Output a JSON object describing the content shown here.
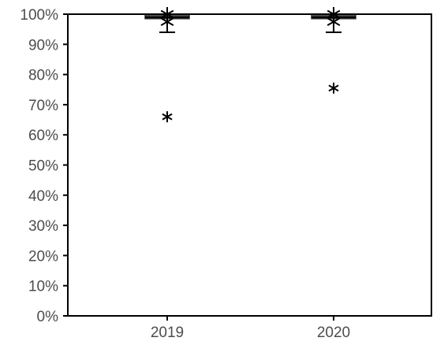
{
  "chart_data": {
    "type": "box",
    "title": "",
    "xlabel": "",
    "ylabel": "",
    "ylim": [
      0,
      1
    ],
    "y_tick_values": [
      0,
      0.1,
      0.2,
      0.3,
      0.4,
      0.5,
      0.6,
      0.7,
      0.8,
      0.9,
      1.0
    ],
    "y_tick_labels": [
      "0%",
      "10%",
      "20%",
      "30%",
      "40%",
      "50%",
      "60%",
      "70%",
      "80%",
      "90%",
      "100%"
    ],
    "categories": [
      "2019",
      "2020"
    ],
    "boxes": [
      {
        "category": "2019",
        "q1": 0.985,
        "median": 0.99,
        "q3": 0.998,
        "whisker_low": 0.94,
        "whisker_high": 1.0,
        "mean": 0.975,
        "outliers": [
          0.66
        ]
      },
      {
        "category": "2020",
        "q1": 0.985,
        "median": 0.99,
        "q3": 0.998,
        "whisker_low": 0.94,
        "whisker_high": 1.0,
        "mean": 0.975,
        "outliers": [
          0.755
        ]
      }
    ],
    "colors": {
      "box_fill": "#6b6b6b",
      "marks": "#000000",
      "tick_labels": "#4d4d4d"
    }
  }
}
